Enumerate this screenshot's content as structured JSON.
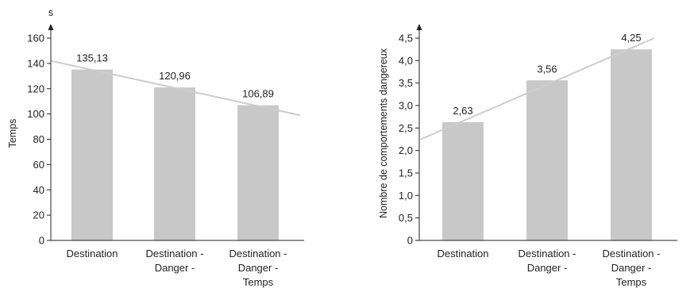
{
  "chart_data": [
    {
      "type": "bar",
      "categories": [
        [
          "Destination"
        ],
        [
          "Destination -",
          "Danger -"
        ],
        [
          "Destination -",
          "Danger -",
          "Temps"
        ]
      ],
      "values": [
        135.13,
        120.96,
        106.89
      ],
      "value_labels": [
        "135,13",
        "120,96",
        "106,89"
      ],
      "ylabel": "Temps",
      "yunit": "s",
      "ylim": [
        0,
        160
      ],
      "yticks": [
        0,
        20,
        40,
        60,
        80,
        100,
        120,
        140,
        160
      ],
      "ytick_labels": [
        "0",
        "20",
        "40",
        "60",
        "80",
        "100",
        "120",
        "140",
        "160"
      ],
      "trendline": {
        "y_start": 142,
        "y_end": 99
      },
      "bar_color": "#c8c8c8",
      "trend_color": "#cccccc",
      "grid": false
    },
    {
      "type": "bar",
      "categories": [
        [
          "Destination"
        ],
        [
          "Destination -",
          "Danger -"
        ],
        [
          "Destination -",
          "Danger -",
          "Temps"
        ]
      ],
      "values": [
        2.63,
        3.56,
        4.25
      ],
      "value_labels": [
        "2,63",
        "3,56",
        "4,25"
      ],
      "ylabel": "Nombre de comportements dangereux",
      "ylim": [
        0,
        4.5
      ],
      "yticks": [
        0,
        0.5,
        1,
        1.5,
        2,
        2.5,
        3,
        3.5,
        4,
        4.5
      ],
      "ytick_labels": [
        "0",
        "0,5",
        "1,0",
        "1,5",
        "2,0",
        "2,5",
        "3,0",
        "3,5",
        "4,0",
        "4,5"
      ],
      "trendline": {
        "y_start": 2.25,
        "y_end": 4.5
      },
      "bar_color": "#c8c8c8",
      "trend_color": "#cccccc",
      "grid": false
    }
  ]
}
